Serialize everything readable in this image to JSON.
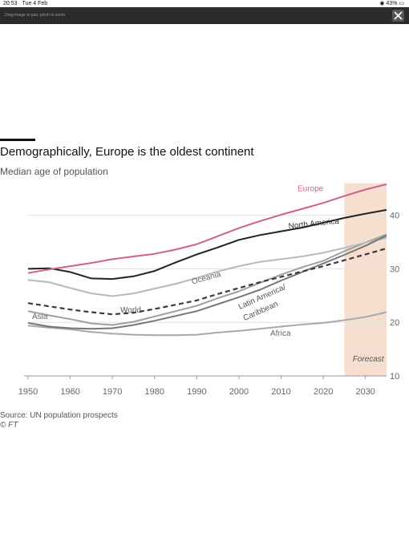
{
  "statusbar": {
    "time": "20:53",
    "date": "Tue 4 Feb",
    "battery": "43%"
  },
  "viewer": {
    "hint": "Drag image to pan; pinch to zoom"
  },
  "colors": {
    "europe": "#cf5e93",
    "north_america": "#222222",
    "oceania": "#b9b9b9",
    "world": "#3a3a3a",
    "latin_america": "#777777",
    "asia": "#9f9f9f",
    "africa": "#a8a8a8",
    "forecast_band": "#f6dfcf"
  },
  "chart_data": {
    "type": "line",
    "title": "Demographically, Europe is the oldest continent",
    "subtitle": "Median age of population",
    "xlabel": "",
    "ylabel": "",
    "xlim": [
      1950,
      2035
    ],
    "ylim": [
      10,
      46
    ],
    "x_ticks": [
      1950,
      1960,
      1970,
      1980,
      1990,
      2000,
      2010,
      2020,
      2030
    ],
    "y_ticks": [
      10,
      20,
      30,
      40
    ],
    "y_axis_position": "right",
    "grid": "horizontal",
    "forecast": {
      "label": "Forecast",
      "from": 2025,
      "to": 2035
    },
    "x": [
      1950,
      1955,
      1960,
      1965,
      1970,
      1975,
      1980,
      1985,
      1990,
      1995,
      2000,
      2005,
      2010,
      2015,
      2020,
      2025,
      2030,
      2035
    ],
    "series": [
      {
        "name": "Europe",
        "style": "solid",
        "values": [
          29.2,
          29.9,
          30.5,
          31.1,
          31.8,
          32.3,
          32.8,
          33.6,
          34.6,
          36.1,
          37.6,
          38.9,
          40.1,
          41.2,
          42.3,
          43.6,
          44.8,
          45.8
        ]
      },
      {
        "name": "North America",
        "style": "solid",
        "values": [
          30.0,
          30.1,
          29.4,
          28.2,
          28.1,
          28.6,
          29.6,
          31.2,
          32.7,
          34.0,
          35.4,
          36.3,
          37.0,
          37.7,
          38.6,
          39.5,
          40.3,
          41.0
        ]
      },
      {
        "name": "Oceania",
        "style": "solid",
        "values": [
          27.9,
          27.5,
          26.4,
          25.4,
          24.9,
          25.4,
          26.3,
          27.2,
          28.3,
          29.5,
          30.5,
          31.3,
          31.8,
          32.3,
          33.0,
          33.9,
          34.9,
          35.8
        ]
      },
      {
        "name": "World",
        "style": "dashed",
        "values": [
          23.6,
          23.0,
          22.4,
          21.9,
          21.5,
          21.8,
          22.5,
          23.3,
          24.1,
          25.3,
          26.4,
          27.5,
          28.5,
          29.5,
          30.5,
          31.6,
          32.7,
          33.8
        ]
      },
      {
        "name": "Latin America/ Caribbean",
        "style": "solid",
        "values": [
          19.9,
          19.2,
          18.9,
          18.8,
          18.9,
          19.5,
          20.3,
          21.2,
          22.1,
          23.4,
          24.7,
          26.1,
          27.8,
          29.4,
          31.0,
          32.6,
          34.3,
          36.2
        ]
      },
      {
        "name": "Asia",
        "style": "solid",
        "values": [
          22.1,
          21.3,
          20.6,
          19.8,
          19.5,
          20.1,
          21.1,
          22.1,
          23.1,
          24.5,
          25.8,
          27.4,
          28.9,
          30.3,
          31.5,
          33.3,
          34.9,
          36.4
        ]
      },
      {
        "name": "Africa",
        "style": "solid",
        "values": [
          19.4,
          19.0,
          18.7,
          18.2,
          17.9,
          17.7,
          17.6,
          17.6,
          17.7,
          18.1,
          18.4,
          18.8,
          19.2,
          19.6,
          19.9,
          20.4,
          21.0,
          21.9
        ]
      }
    ]
  },
  "source": "Source: UN population prospects",
  "copyright": "© FT"
}
